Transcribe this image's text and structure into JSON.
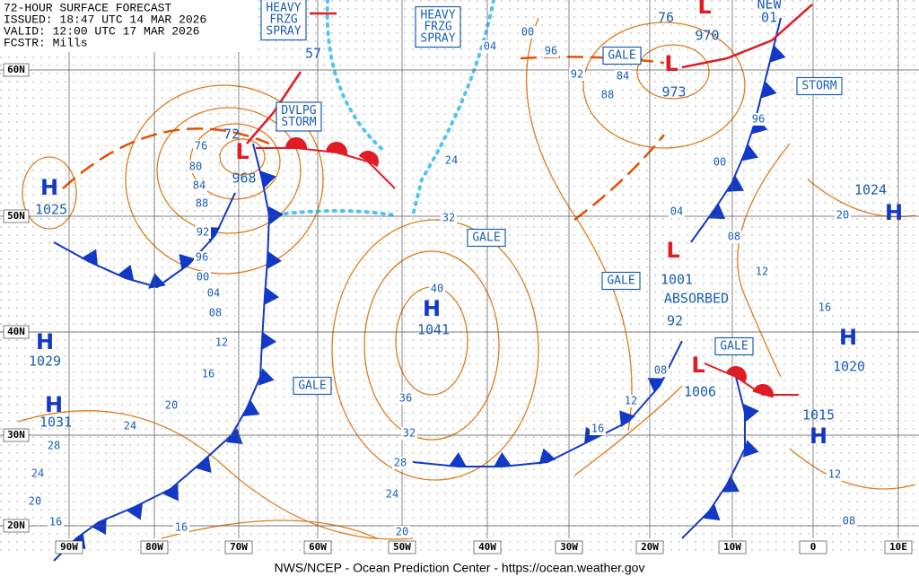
{
  "header": {
    "lines": [
      "72-HOUR SURFACE FORECAST",
      "ISSUED: 18:47 UTC 14 MAR 2026",
      "VALID: 12:00 UTC 17 MAR 2026",
      "FCSTR: Mills"
    ]
  },
  "pressure_centers": [
    {
      "symbol": "H",
      "value": "1025"
    },
    {
      "symbol": "H",
      "value": "1029"
    },
    {
      "symbol": "H",
      "value": "1031"
    },
    {
      "symbol": "H",
      "value": "1041"
    },
    {
      "symbol": "H",
      "value": "1024"
    },
    {
      "symbol": "H",
      "value": "1020"
    },
    {
      "symbol": "H",
      "value": "1015"
    },
    {
      "symbol": "L",
      "value": "968"
    },
    {
      "symbol": "L",
      "value": "973"
    },
    {
      "symbol": "L",
      "value": "970"
    },
    {
      "symbol": "L",
      "value": "1001"
    },
    {
      "symbol": "L",
      "value": "1006"
    }
  ],
  "other_values": [
    "72",
    "57",
    "92",
    "76",
    "01",
    "NEW",
    "ABSORBED"
  ],
  "boxes": [
    {
      "lines": [
        "HEAVY",
        "FRZG",
        "SPRAY"
      ]
    },
    {
      "lines": [
        "HEAVY",
        "FRZG",
        "SPRAY"
      ]
    },
    {
      "lines": [
        "DVLPG",
        "STORM"
      ]
    },
    {
      "lines": [
        "GALE"
      ]
    },
    {
      "lines": [
        "STORM"
      ]
    },
    {
      "lines": [
        "GALE"
      ]
    },
    {
      "lines": [
        "GALE"
      ]
    },
    {
      "lines": [
        "GALE"
      ]
    },
    {
      "lines": [
        "GALE"
      ]
    }
  ],
  "isobar_labels": [
    "76",
    "80",
    "84",
    "88",
    "92",
    "96",
    "00",
    "04",
    "08",
    "12",
    "16",
    "20",
    "24",
    "28",
    "24",
    "20",
    "16",
    "16",
    "20",
    "24",
    "28",
    "32",
    "36",
    "40",
    "32",
    "24",
    "04",
    "00",
    "96",
    "92",
    "88",
    "84",
    "00",
    "04",
    "08",
    "12",
    "16",
    "20",
    "96",
    "08",
    "12",
    "16",
    "12",
    "08"
  ],
  "lat_labels": [
    "60N",
    "50N",
    "40N",
    "30N",
    "20N"
  ],
  "lon_labels": [
    "90W",
    "80W",
    "70W",
    "60W",
    "50W",
    "40W",
    "30W",
    "20W",
    "10W",
    "0",
    "10E"
  ],
  "footer": "NWS/NCEP - Ocean Prediction Center - https://ocean.weather.gov"
}
